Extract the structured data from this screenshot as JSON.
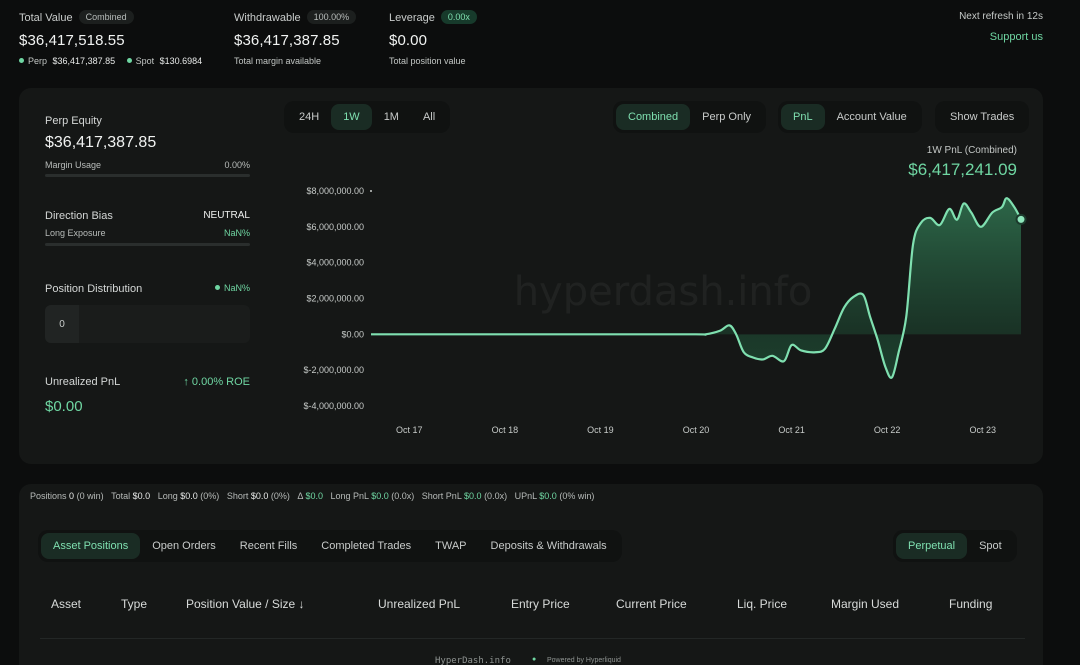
{
  "header": {
    "total_value": {
      "label": "Total Value",
      "badge": "Combined",
      "value": "$36,417,518.55",
      "perp_label": "Perp",
      "perp_value": "$36,417,387.85",
      "spot_label": "Spot",
      "spot_value": "$130.6984"
    },
    "withdrawable": {
      "label": "Withdrawable",
      "badge": "100.00%",
      "value": "$36,417,387.85",
      "sub": "Total margin available"
    },
    "leverage": {
      "label": "Leverage",
      "badge": "0.00x",
      "value": "$0.00",
      "sub": "Total position value"
    },
    "refresh": "Next refresh in 12s",
    "support": "Support us"
  },
  "left_panel": {
    "perp_equity_label": "Perp Equity",
    "perp_equity_value": "$36,417,387.85",
    "margin_usage_label": "Margin Usage",
    "margin_usage_value": "0.00%",
    "direction_bias_label": "Direction Bias",
    "direction_bias_value": "NEUTRAL",
    "long_exposure_label": "Long Exposure",
    "long_exposure_value": "NaN%",
    "position_distribution_label": "Position Distribution",
    "position_distribution_value": "NaN%",
    "distribution_count": "0",
    "unrealized_pnl_label": "Unrealized PnL",
    "roe": "↑ 0.00% ROE",
    "unrealized_pnl_value": "$0.00"
  },
  "chart_controls": {
    "ranges": [
      "24H",
      "1W",
      "1M",
      "All"
    ],
    "active_range": "1W",
    "modes": [
      "Combined",
      "Perp Only"
    ],
    "metrics": [
      "PnL",
      "Account Value"
    ],
    "show_trades": "Show Trades"
  },
  "watermark": "hyperdash.info",
  "chart_data": {
    "type": "area",
    "title": "1W PnL (Combined)",
    "headline_value": "$6,417,241.09",
    "y_ticks": [
      "$8,000,000.00",
      "$6,000,000.00",
      "$4,000,000.00",
      "$2,000,000.00",
      "$0.00",
      "$-2,000,000.00",
      "$-4,000,000.00"
    ],
    "x_ticks": [
      "Oct 17",
      "Oct 18",
      "Oct 19",
      "Oct 20",
      "Oct 21",
      "Oct 22",
      "Oct 23"
    ],
    "ylim": [
      -4000000,
      8000000
    ],
    "xlim": [
      16.6,
      23.4
    ],
    "color": "#6fd6a2",
    "points": [
      [
        16.6,
        0
      ],
      [
        17.0,
        0
      ],
      [
        18.0,
        0
      ],
      [
        19.0,
        0
      ],
      [
        20.0,
        0
      ],
      [
        20.1,
        0
      ],
      [
        20.25,
        200000
      ],
      [
        20.35,
        500000
      ],
      [
        20.42,
        0
      ],
      [
        20.5,
        -1000000
      ],
      [
        20.6,
        -1300000
      ],
      [
        20.7,
        -1400000
      ],
      [
        20.8,
        -1200000
      ],
      [
        20.92,
        -1500000
      ],
      [
        21.0,
        -600000
      ],
      [
        21.1,
        -900000
      ],
      [
        21.25,
        -1000000
      ],
      [
        21.35,
        -800000
      ],
      [
        21.45,
        300000
      ],
      [
        21.55,
        1500000
      ],
      [
        21.65,
        2100000
      ],
      [
        21.75,
        2200000
      ],
      [
        21.82,
        1000000
      ],
      [
        21.9,
        -300000
      ],
      [
        21.98,
        -1800000
      ],
      [
        22.05,
        -2400000
      ],
      [
        22.12,
        -1000000
      ],
      [
        22.2,
        1000000
      ],
      [
        22.27,
        5000000
      ],
      [
        22.35,
        6200000
      ],
      [
        22.45,
        6500000
      ],
      [
        22.55,
        6100000
      ],
      [
        22.65,
        7000000
      ],
      [
        22.73,
        6400000
      ],
      [
        22.8,
        7300000
      ],
      [
        22.88,
        6800000
      ],
      [
        22.98,
        6000000
      ],
      [
        23.1,
        6800000
      ],
      [
        23.2,
        7100000
      ],
      [
        23.25,
        7600000
      ],
      [
        23.33,
        7100000
      ],
      [
        23.4,
        6417241
      ]
    ]
  },
  "summary": {
    "positions_label": "Positions",
    "positions_value": "0",
    "positions_sub": "(0 win)",
    "total_label": "Total",
    "total_value": "$0.0",
    "long_label": "Long",
    "long_value": "$0.0",
    "long_sub": "(0%)",
    "short_label": "Short",
    "short_value": "$0.0",
    "short_sub": "(0%)",
    "delta_label": "Δ",
    "delta_value": "$0.0",
    "long_pnl_label": "Long PnL",
    "long_pnl_value": "$0.0",
    "long_pnl_sub": "(0.0x)",
    "short_pnl_label": "Short PnL",
    "short_pnl_value": "$0.0",
    "short_pnl_sub": "(0.0x)",
    "upnl_label": "UPnL",
    "upnl_value": "$0.0",
    "upnl_sub": "(0% win)"
  },
  "bottom_tabs": [
    "Asset Positions",
    "Open Orders",
    "Recent Fills",
    "Completed Trades",
    "TWAP",
    "Deposits & Withdrawals"
  ],
  "market_tabs": [
    "Perpetual",
    "Spot"
  ],
  "table_headers": [
    "Asset",
    "Type",
    "Position Value / Size ↓",
    "Unrealized PnL",
    "Entry Price",
    "Current Price",
    "Liq. Price",
    "Margin Used",
    "Funding"
  ],
  "footer": {
    "site": "HyperDash.info",
    "powered": "Powered by Hyperliquid"
  }
}
